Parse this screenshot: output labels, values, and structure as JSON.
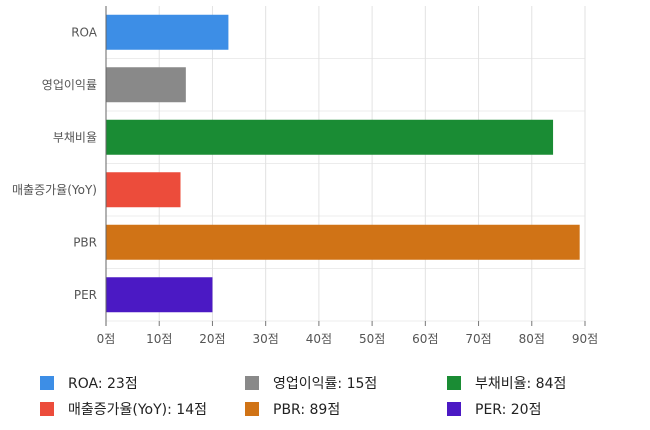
{
  "chart_data": {
    "type": "bar",
    "orientation": "horizontal",
    "categories": [
      "ROA",
      "영업이익률",
      "부채비율",
      "매출증가율(YoY)",
      "PBR",
      "PER"
    ],
    "values": [
      23,
      15,
      84,
      14,
      89,
      20
    ],
    "colors": [
      "#3d8ee6",
      "#898989",
      "#1a8c34",
      "#ec4c3b",
      "#d07316",
      "#4b19c4"
    ],
    "xlim": [
      0,
      90
    ],
    "x_ticks": [
      0,
      10,
      20,
      30,
      40,
      50,
      60,
      70,
      80,
      90
    ],
    "tick_suffix": "점",
    "grid": true,
    "legend_position": "bottom",
    "legend_labels": [
      "ROA: 23점",
      "영업이익률: 15점",
      "부채비율: 84점",
      "매출증가율(YoY): 14점",
      "PBR: 89점",
      "PER: 20점"
    ]
  }
}
